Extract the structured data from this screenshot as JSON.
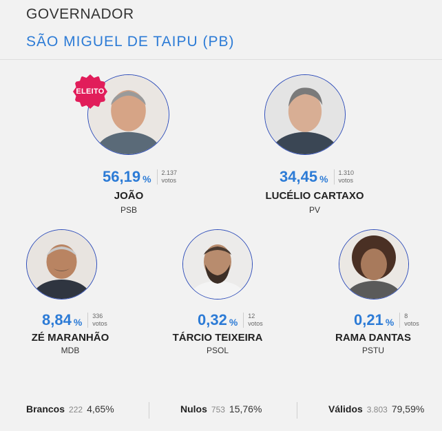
{
  "header": {
    "title": "GOVERNADOR",
    "subtitle": "SÃO MIGUEL DE TAIPU (PB)"
  },
  "candidates": [
    {
      "name": "JOÃO",
      "party": "PSB",
      "pct": "56,19",
      "pct_sign": "%",
      "votes": "2.137",
      "votes_label": "votos",
      "badge": "ELEITO",
      "elected": true
    },
    {
      "name": "LUCÉLIO CARTAXO",
      "party": "PV",
      "pct": "34,45",
      "pct_sign": "%",
      "votes": "1.310",
      "votes_label": "votos"
    },
    {
      "name": "ZÉ MARANHÃO",
      "party": "MDB",
      "pct": "8,84",
      "pct_sign": "%",
      "votes": "336",
      "votes_label": "votos"
    },
    {
      "name": "TÁRCIO TEIXEIRA",
      "party": "PSOL",
      "pct": "0,32",
      "pct_sign": "%",
      "votes": "12",
      "votes_label": "votos"
    },
    {
      "name": "RAMA DANTAS",
      "party": "PSTU",
      "pct": "0,21",
      "pct_sign": "%",
      "votes": "8",
      "votes_label": "votos"
    }
  ],
  "footer": {
    "brancos": {
      "label": "Brancos",
      "count": "222",
      "pct": "4,65%"
    },
    "nulos": {
      "label": "Nulos",
      "count": "753",
      "pct": "15,76%"
    },
    "validos": {
      "label": "Válidos",
      "count": "3.803",
      "pct": "79,59%"
    }
  },
  "colors": {
    "accent": "#2c7bd6",
    "elected_badge": "#e11d5a",
    "avatar_ring": "#2c4bb8"
  }
}
